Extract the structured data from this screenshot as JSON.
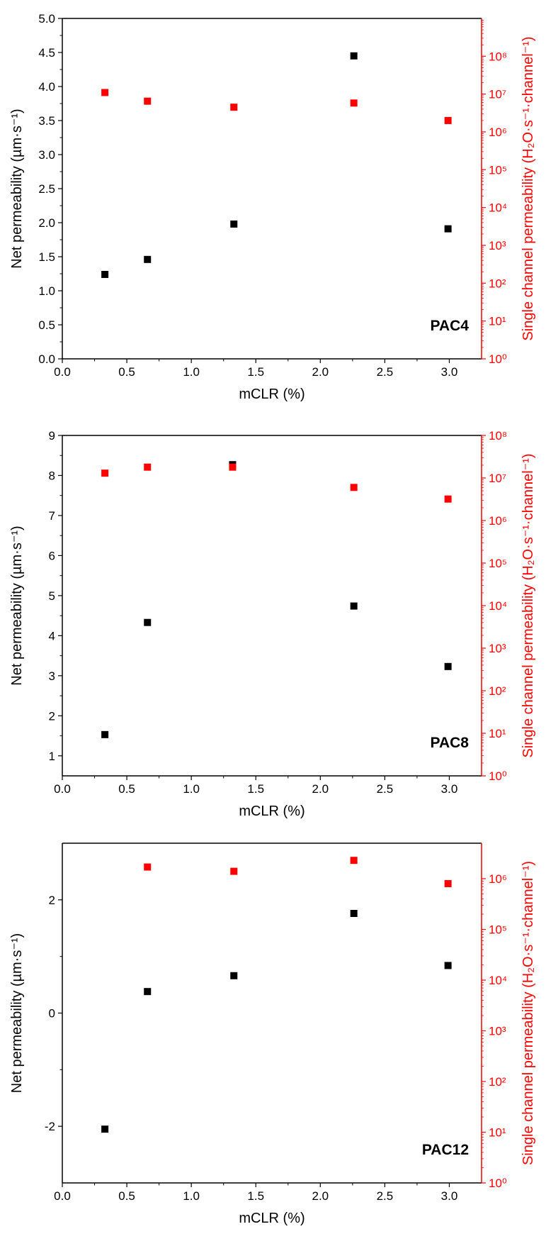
{
  "chart_data": [
    {
      "type": "scatter",
      "title": "",
      "label": "PAC4",
      "xlabel": "mCLR (%)",
      "ylabel_left": "Net permeability (µm·s⁻¹)",
      "ylabel_right": "Single channel permeability (H₂O·s⁻¹·channel⁻¹)",
      "xlim": [
        0,
        3.25
      ],
      "x_ticks": [
        "0.0",
        "0.5",
        "1.0",
        "1.5",
        "2.0",
        "2.5",
        "3.0"
      ],
      "ylim_left": [
        0,
        5
      ],
      "y_ticks_left": [
        "0.0",
        "0.5",
        "1.0",
        "1.5",
        "2.0",
        "2.5",
        "3.0",
        "3.5",
        "4.0",
        "4.5",
        "5.0"
      ],
      "ylim_right_log10": [
        0,
        9
      ],
      "y_ticks_right": [
        "10⁰",
        "10¹",
        "10²",
        "10³",
        "10⁴",
        "10⁵",
        "10⁶",
        "10⁷",
        "10⁸"
      ],
      "series": [
        {
          "axis": "left",
          "color": "#000000",
          "x": [
            0.33,
            0.66,
            1.33,
            2.26,
            2.99
          ],
          "y": [
            1.24,
            1.46,
            1.98,
            4.45,
            1.91
          ]
        },
        {
          "axis": "right",
          "color": "#ff0000",
          "x": [
            0.33,
            0.66,
            1.33,
            2.26,
            2.99
          ],
          "y": [
            11000000,
            6500000,
            4500000,
            5800000,
            2000000
          ]
        }
      ]
    },
    {
      "type": "scatter",
      "title": "",
      "label": "PAC8",
      "xlabel": "mCLR (%)",
      "ylabel_left": "Net permeability (µm·s⁻¹)",
      "ylabel_right": "Single channel permeability (H₂O·s⁻¹·channel⁻¹)",
      "xlim": [
        0,
        3.25
      ],
      "x_ticks": [
        "0.0",
        "0.5",
        "1.0",
        "1.5",
        "2.0",
        "2.5",
        "3.0"
      ],
      "ylim_left": [
        0.5,
        9
      ],
      "y_ticks_left": [
        "1",
        "2",
        "3",
        "4",
        "5",
        "6",
        "7",
        "8",
        "9"
      ],
      "ylim_right_log10": [
        0,
        8
      ],
      "y_ticks_right": [
        "10⁰",
        "10¹",
        "10²",
        "10³",
        "10⁴",
        "10⁵",
        "10⁶",
        "10⁷",
        "10⁸"
      ],
      "series": [
        {
          "axis": "left",
          "color": "#000000",
          "x": [
            0.33,
            0.66,
            1.32,
            2.26,
            2.99
          ],
          "y": [
            1.53,
            4.33,
            8.27,
            4.74,
            3.23
          ]
        },
        {
          "axis": "right",
          "color": "#ff0000",
          "x": [
            0.33,
            0.66,
            1.32,
            2.26,
            2.99
          ],
          "y": [
            13000000,
            18000000,
            18000000,
            6000000,
            3200000
          ]
        }
      ]
    },
    {
      "type": "scatter",
      "title": "",
      "label": "PAC12",
      "xlabel": "mCLR (%)",
      "ylabel_left": "Net permeability (µm·s⁻¹)",
      "ylabel_right": "Single channel permeability (H₂O·s⁻¹·channel⁻¹)",
      "xlim": [
        0,
        3.25
      ],
      "x_ticks": [
        "0.0",
        "0.5",
        "1.0",
        "1.5",
        "2.0",
        "2.5",
        "3.0"
      ],
      "ylim_left": [
        -3,
        3
      ],
      "y_ticks_left": [
        "-2",
        "0",
        "2"
      ],
      "ylim_right_log10": [
        0,
        6.7
      ],
      "y_ticks_right": [
        "10⁰",
        "10¹",
        "10²",
        "10³",
        "10⁴",
        "10⁵",
        "10⁶"
      ],
      "series": [
        {
          "axis": "left",
          "color": "#000000",
          "x": [
            0.33,
            0.66,
            1.33,
            2.26,
            2.99
          ],
          "y": [
            -2.05,
            0.38,
            0.66,
            1.76,
            0.84
          ]
        },
        {
          "axis": "right",
          "color": "#ff0000",
          "x": [
            0.66,
            1.33,
            2.26,
            2.99
          ],
          "y": [
            1700000,
            1400000,
            2300000,
            800000
          ]
        }
      ]
    }
  ]
}
